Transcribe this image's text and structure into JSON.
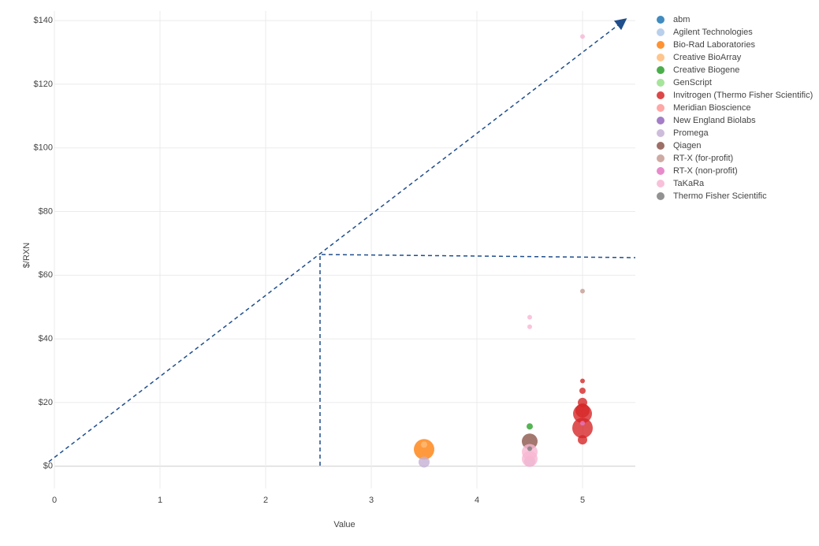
{
  "chart_data": {
    "type": "scatter",
    "x_label": "Value",
    "y_label": "$/RXN",
    "xlim": [
      0,
      5.5
    ],
    "xticks": [
      0,
      1,
      2,
      3,
      4,
      5
    ],
    "ylim": [
      -7,
      143
    ],
    "yticks": [
      {
        "value": 0,
        "label": "$0"
      },
      {
        "value": 20,
        "label": "$20"
      },
      {
        "value": 40,
        "label": "$40"
      },
      {
        "value": 60,
        "label": "$60"
      },
      {
        "value": 80,
        "label": "$80"
      },
      {
        "value": 100,
        "label": "$100"
      },
      {
        "value": 120,
        "label": "$120"
      },
      {
        "value": 140,
        "label": "$140"
      }
    ],
    "grid": true,
    "legend": "right",
    "series": [
      {
        "name": "abm",
        "color": "#1f77b4",
        "x": [],
        "y": [],
        "sizes": []
      },
      {
        "name": "Agilent Technologies",
        "color": "#aec7e8",
        "x": [],
        "y": [],
        "sizes": []
      },
      {
        "name": "Bio-Rad Laboratories",
        "color": "#ff7f0e",
        "x": [
          3.5
        ],
        "y": [
          5.3
        ],
        "sizes": [
          26
        ]
      },
      {
        "name": "Creative BioArray",
        "color": "#ffbb78",
        "x": [
          3.5
        ],
        "y": [
          6.8
        ],
        "sizes": [
          8
        ]
      },
      {
        "name": "Creative Biogene",
        "color": "#2ca02c",
        "x": [
          4.5
        ],
        "y": [
          12.5
        ],
        "sizes": [
          8
        ]
      },
      {
        "name": "GenScript",
        "color": "#98df8a",
        "x": [],
        "y": [],
        "sizes": []
      },
      {
        "name": "Invitrogen (Thermo Fisher Scientific)",
        "color": "#d62728",
        "x": [
          5,
          5,
          5,
          5,
          5,
          5,
          5
        ],
        "y": [
          26.8,
          23.7,
          20,
          17.5,
          16.5,
          12,
          8.3
        ],
        "sizes": [
          6,
          8,
          12,
          18,
          24,
          26,
          12
        ]
      },
      {
        "name": "Meridian Bioscience",
        "color": "#ff9896",
        "x": [],
        "y": [],
        "sizes": []
      },
      {
        "name": "New England Biolabs",
        "color": "#9467bd",
        "x": [],
        "y": [],
        "sizes": []
      },
      {
        "name": "Promega",
        "color": "#c5b0d5",
        "x": [
          3.5,
          4.5
        ],
        "y": [
          1.3,
          1.5
        ],
        "sizes": [
          14,
          14
        ]
      },
      {
        "name": "Qiagen",
        "color": "#8c564b",
        "x": [
          4.5
        ],
        "y": [
          7.8
        ],
        "sizes": [
          20
        ]
      },
      {
        "name": "RT-X (for-profit)",
        "color": "#c49c94",
        "x": [
          5
        ],
        "y": [
          55
        ],
        "sizes": [
          6
        ]
      },
      {
        "name": "RT-X (non-profit)",
        "color": "#e377c2",
        "x": [
          5
        ],
        "y": [
          13.5
        ],
        "sizes": [
          6
        ]
      },
      {
        "name": "TaKaRa",
        "color": "#f7b6d2",
        "x": [
          4.5,
          4.5,
          4.5,
          4.5,
          5
        ],
        "y": [
          4.5,
          2.3,
          46.8,
          43.8,
          135
        ],
        "sizes": [
          20,
          20,
          6,
          6,
          6
        ]
      },
      {
        "name": "Thermo Fisher Scientific",
        "color": "#7f7f7f",
        "x": [
          4.5
        ],
        "y": [
          5.5
        ],
        "sizes": [
          6
        ]
      }
    ]
  }
}
